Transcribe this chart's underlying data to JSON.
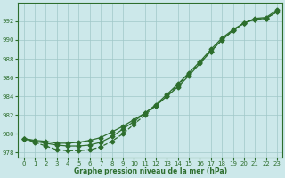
{
  "x": [
    0,
    1,
    2,
    3,
    4,
    5,
    6,
    7,
    8,
    9,
    10,
    11,
    12,
    13,
    14,
    15,
    16,
    17,
    18,
    19,
    20,
    21,
    22,
    23
  ],
  "line1": [
    979.5,
    979.3,
    979.2,
    979.0,
    979.0,
    979.1,
    979.3,
    979.6,
    980.2,
    980.8,
    981.5,
    982.2,
    983.0,
    984.0,
    985.0,
    986.2,
    987.5,
    988.8,
    990.0,
    991.0,
    991.8,
    992.3,
    992.4,
    993.2
  ],
  "line2": [
    979.5,
    979.2,
    979.0,
    978.8,
    978.7,
    978.7,
    978.8,
    979.1,
    979.7,
    980.5,
    981.3,
    982.2,
    983.1,
    984.2,
    985.3,
    986.5,
    987.7,
    989.0,
    990.2,
    991.1,
    991.8,
    992.2,
    992.3,
    993.0
  ],
  "line3": [
    979.5,
    979.1,
    978.7,
    978.3,
    978.2,
    978.2,
    978.3,
    978.6,
    979.2,
    980.0,
    981.0,
    982.0,
    983.0,
    984.0,
    985.2,
    986.4,
    987.6,
    988.8,
    990.0,
    991.0,
    991.8,
    992.2,
    992.3,
    993.0
  ],
  "line_color": "#2d6e2d",
  "bg_color": "#cce8ea",
  "grid_color": "#a0c8c8",
  "xlabel": "Graphe pression niveau de la mer (hPa)",
  "ylim": [
    977.5,
    994.0
  ],
  "xlim": [
    -0.5,
    23.5
  ],
  "yticks": [
    978,
    980,
    982,
    984,
    986,
    988,
    990,
    992
  ],
  "xticks": [
    0,
    1,
    2,
    3,
    4,
    5,
    6,
    7,
    8,
    9,
    10,
    11,
    12,
    13,
    14,
    15,
    16,
    17,
    18,
    19,
    20,
    21,
    22,
    23
  ],
  "marker": "D",
  "markersize": 2.5,
  "linewidth": 0.9
}
